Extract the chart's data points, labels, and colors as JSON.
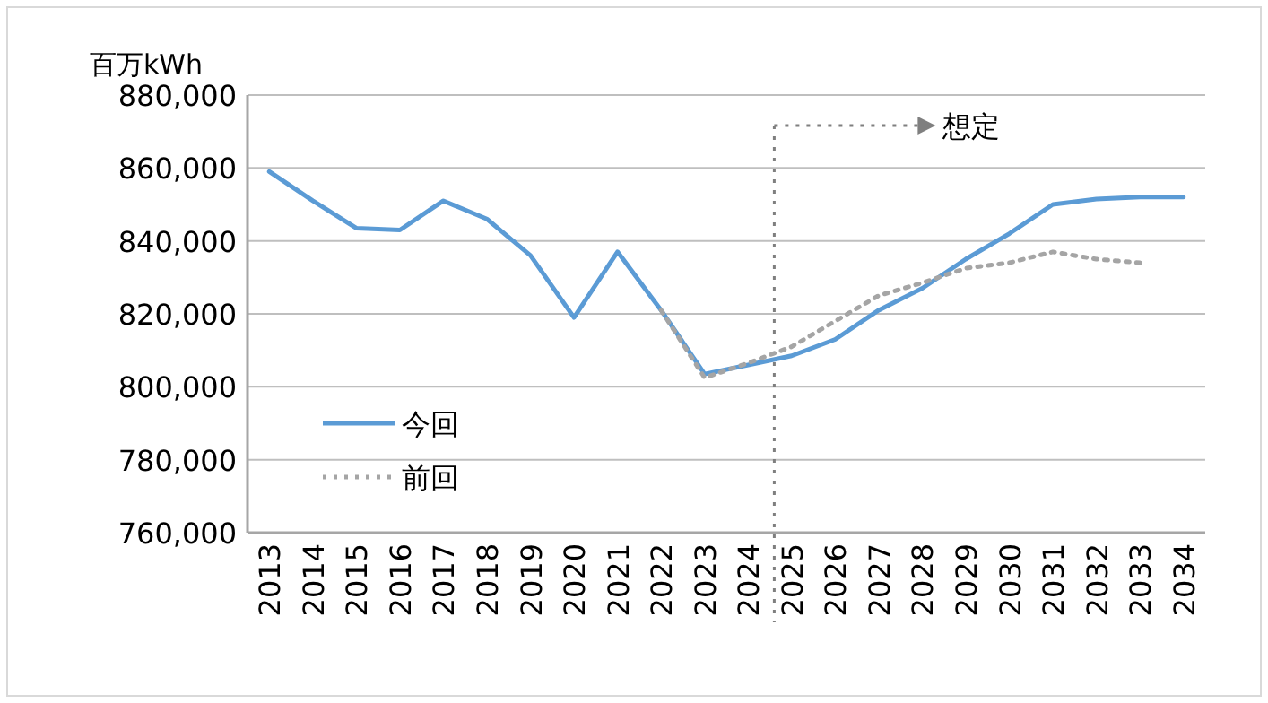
{
  "chart_data": {
    "type": "line",
    "ylabel": "百万kWh",
    "categories": [
      "2013",
      "2014",
      "2015",
      "2016",
      "2017",
      "2018",
      "2019",
      "2020",
      "2021",
      "2022",
      "2023",
      "2024",
      "2025",
      "2026",
      "2027",
      "2028",
      "2029",
      "2030",
      "2031",
      "2032",
      "2033",
      "2034"
    ],
    "series": [
      {
        "name": "今回",
        "color": "#5b9bd5",
        "line_style": "solid",
        "values": [
          859000,
          851000,
          843500,
          843000,
          851000,
          846000,
          836000,
          819000,
          837000,
          821000,
          803500,
          806000,
          808500,
          813000,
          821000,
          827000,
          835000,
          842000,
          850000,
          851500,
          852000,
          852000
        ]
      },
      {
        "name": "前回",
        "color": "#a5a5a5",
        "line_style": "dotted",
        "values": [
          null,
          null,
          null,
          null,
          null,
          null,
          null,
          null,
          null,
          821000,
          802500,
          806500,
          811000,
          818000,
          825000,
          828500,
          832500,
          834000,
          837000,
          835000,
          834000,
          null
        ]
      }
    ],
    "ylim": [
      760000,
      880000
    ],
    "yticks": [
      {
        "value": 760000,
        "label": "760,000"
      },
      {
        "value": 780000,
        "label": "780,000"
      },
      {
        "value": 800000,
        "label": "800,000"
      },
      {
        "value": 820000,
        "label": "820,000"
      },
      {
        "value": 840000,
        "label": "840,000"
      },
      {
        "value": 860000,
        "label": "860,000"
      },
      {
        "value": 880000,
        "label": "880,000"
      }
    ],
    "ref_lines": [
      {
        "axis": "x",
        "value": "2025",
        "label": "想定",
        "color": "#7f7f7f",
        "line_style": "dotted"
      }
    ],
    "grid": "y",
    "legend": "bottom left",
    "marker": "none"
  }
}
